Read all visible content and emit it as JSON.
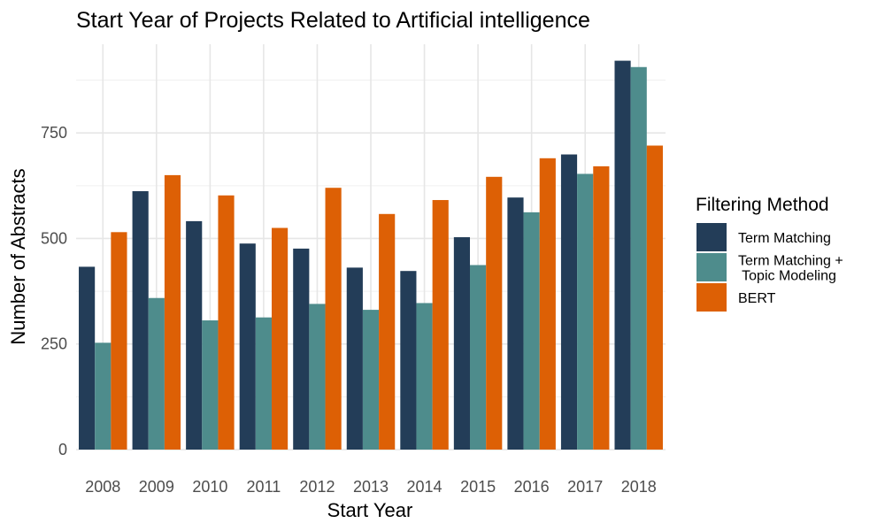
{
  "chart_data": {
    "type": "bar",
    "title": "Start Year of Projects Related to Artificial intelligence",
    "xlabel": "Start Year",
    "ylabel": "Number of Abstracts",
    "categories": [
      "2008",
      "2009",
      "2010",
      "2011",
      "2012",
      "2013",
      "2014",
      "2015",
      "2016",
      "2017",
      "2018"
    ],
    "series": [
      {
        "name": "Term Matching",
        "color": "#233d58",
        "values": [
          433,
          612,
          541,
          488,
          476,
          431,
          423,
          503,
          597,
          699,
          921
        ]
      },
      {
        "name": "Term Matching +\n Topic Modeling",
        "color": "#4e8c8c",
        "values": [
          253,
          359,
          306,
          313,
          345,
          331,
          347,
          437,
          562,
          653,
          906
        ]
      },
      {
        "name": "BERT",
        "color": "#dd6005",
        "values": [
          515,
          650,
          602,
          525,
          620,
          558,
          591,
          646,
          690,
          671,
          720
        ]
      }
    ],
    "ylim": [
      0,
      960
    ],
    "yticks": [
      0,
      250,
      500,
      750
    ],
    "grid": true,
    "legend": {
      "title": "Filtering Method",
      "position": "right"
    }
  }
}
